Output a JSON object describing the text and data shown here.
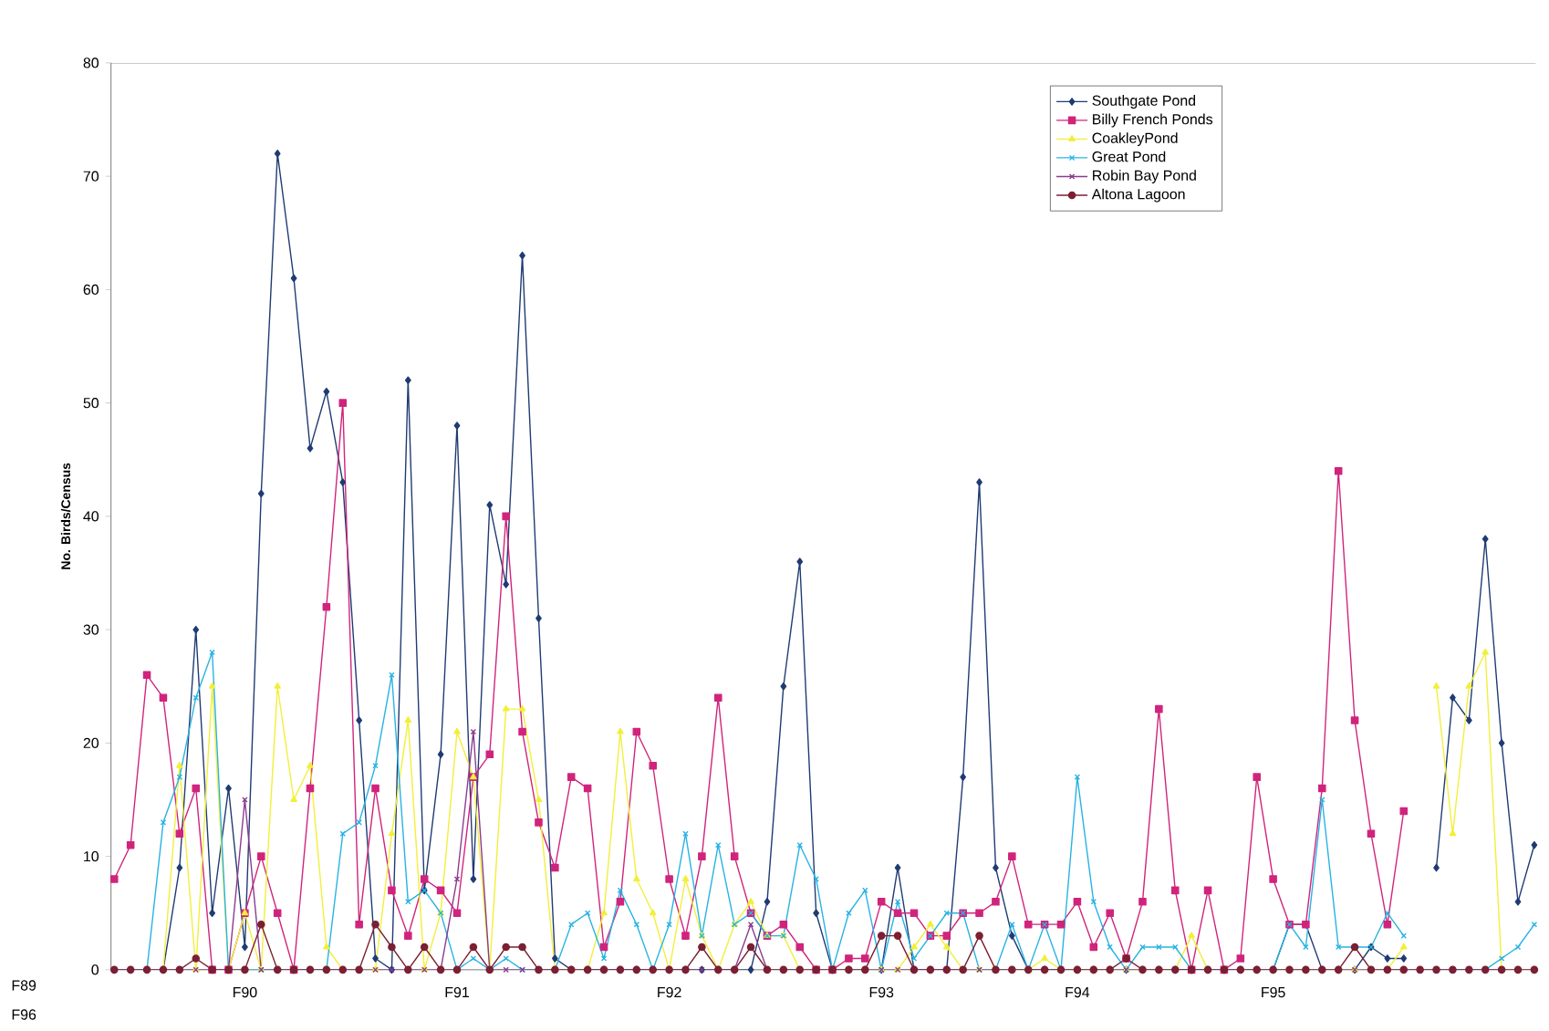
{
  "chart_data": {
    "type": "line",
    "ylabel": "No. Birds/Census",
    "categories": [
      null,
      null,
      null,
      null,
      null,
      null,
      null,
      null,
      "F90",
      null,
      null,
      null,
      null,
      null,
      null,
      null,
      null,
      null,
      null,
      null,
      null,
      "F91",
      null,
      null,
      null,
      null,
      null,
      null,
      null,
      null,
      null,
      null,
      null,
      null,
      "F92",
      null,
      null,
      null,
      null,
      null,
      null,
      null,
      null,
      null,
      null,
      null,
      null,
      "F93",
      null,
      null,
      null,
      null,
      null,
      null,
      null,
      null,
      null,
      null,
      null,
      "F94",
      null,
      null,
      null,
      null,
      null,
      null,
      null,
      null,
      null,
      null,
      null,
      "F95",
      null,
      null,
      null,
      null,
      null,
      null,
      null,
      null,
      null,
      null,
      null,
      null,
      null,
      null,
      null,
      null
    ],
    "ylim": [
      0,
      80
    ],
    "yticks": [
      0,
      10,
      20,
      30,
      40,
      50,
      60,
      70,
      80
    ],
    "legend": "top right",
    "annotations": [
      "F89",
      "F96"
    ],
    "series": [
      {
        "name": "Southgate Pond",
        "color": "#1f3b73",
        "marker": "diamond",
        "values": [
          null,
          null,
          null,
          0,
          9,
          30,
          5,
          16,
          2,
          42,
          72,
          61,
          46,
          51,
          43,
          22,
          1,
          0,
          52,
          7,
          19,
          48,
          8,
          41,
          34,
          63,
          31,
          1,
          0,
          0,
          0,
          0,
          0,
          0,
          0,
          0,
          0,
          0,
          0,
          0,
          6,
          25,
          36,
          5,
          0,
          0,
          0,
          0,
          9,
          0,
          0,
          0,
          17,
          43,
          9,
          3,
          0,
          0,
          0,
          0,
          0,
          0,
          0,
          0,
          0,
          0,
          0,
          0,
          0,
          0,
          0,
          0,
          4,
          4,
          0,
          0,
          0,
          2,
          1,
          1,
          null,
          9,
          24,
          22,
          38,
          20,
          6,
          11
        ]
      },
      {
        "name": "Billy French Ponds",
        "color": "#d0247c",
        "marker": "square",
        "values": [
          8,
          11,
          26,
          24,
          12,
          16,
          0,
          0,
          5,
          10,
          5,
          0,
          16,
          32,
          50,
          4,
          16,
          7,
          3,
          8,
          7,
          5,
          17,
          19,
          40,
          21,
          13,
          9,
          17,
          16,
          2,
          6,
          21,
          18,
          8,
          3,
          10,
          24,
          10,
          5,
          3,
          4,
          2,
          0,
          0,
          1,
          1,
          6,
          5,
          5,
          3,
          3,
          5,
          5,
          6,
          10,
          4,
          4,
          4,
          6,
          2,
          5,
          1,
          6,
          23,
          7,
          0,
          7,
          0,
          1,
          17,
          8,
          4,
          4,
          16,
          44,
          22,
          12,
          4,
          14,
          null,
          null,
          null,
          null,
          null,
          null,
          null,
          null
        ]
      },
      {
        "name": "CoakleyPond",
        "color": "#f2ef3a",
        "marker": "triangle",
        "values": [
          null,
          null,
          null,
          0,
          18,
          0,
          25,
          0,
          5,
          0,
          25,
          15,
          18,
          2,
          0,
          0,
          0,
          12,
          22,
          0,
          5,
          21,
          17,
          0,
          23,
          23,
          15,
          0,
          0,
          0,
          5,
          21,
          8,
          5,
          0,
          8,
          3,
          0,
          4,
          6,
          3,
          3,
          0,
          0,
          0,
          0,
          0,
          0,
          0,
          2,
          4,
          2,
          0,
          0,
          0,
          0,
          0,
          1,
          0,
          0,
          0,
          0,
          0,
          0,
          0,
          0,
          3,
          0,
          0,
          0,
          0,
          0,
          0,
          0,
          0,
          0,
          0,
          0,
          0,
          2,
          null,
          25,
          12,
          25,
          28,
          0,
          0,
          0
        ]
      },
      {
        "name": "Great Pond",
        "color": "#27b3e3",
        "marker": "cross",
        "values": [
          0,
          0,
          0,
          13,
          17,
          24,
          28,
          0,
          0,
          0,
          0,
          0,
          0,
          0,
          12,
          13,
          18,
          26,
          6,
          7,
          5,
          0,
          1,
          0,
          1,
          0,
          0,
          0,
          4,
          5,
          1,
          7,
          4,
          0,
          4,
          12,
          3,
          11,
          4,
          5,
          3,
          3,
          11,
          8,
          0,
          5,
          7,
          0,
          6,
          1,
          3,
          5,
          5,
          0,
          0,
          4,
          0,
          4,
          0,
          17,
          6,
          2,
          0,
          2,
          2,
          2,
          0,
          0,
          0,
          0,
          0,
          0,
          4,
          2,
          15,
          2,
          2,
          2,
          5,
          3,
          null,
          0,
          0,
          0,
          0,
          1,
          2,
          4
        ]
      },
      {
        "name": "Robin Bay Pond",
        "color": "#8b3a8f",
        "marker": "cross",
        "values": [
          0,
          0,
          0,
          0,
          0,
          0,
          0,
          0,
          15,
          0,
          0,
          0,
          0,
          0,
          0,
          0,
          0,
          0,
          0,
          0,
          0,
          8,
          21,
          0,
          0,
          0,
          0,
          0,
          0,
          0,
          0,
          0,
          0,
          0,
          0,
          0,
          0,
          0,
          0,
          4,
          0,
          0,
          0,
          0,
          0,
          0,
          0,
          0,
          0,
          0,
          0,
          0,
          0,
          0,
          0,
          0,
          0,
          0,
          0,
          0,
          0,
          0,
          0,
          0,
          0,
          0,
          0,
          0,
          0,
          0,
          0,
          0,
          0,
          0,
          0,
          0,
          0,
          0,
          0,
          0,
          0,
          0,
          0,
          0,
          0,
          0,
          0,
          0
        ]
      },
      {
        "name": "Altona Lagoon",
        "color": "#7b1f33",
        "marker": "circle",
        "values": [
          0,
          0,
          0,
          0,
          0,
          1,
          0,
          0,
          0,
          4,
          0,
          0,
          0,
          0,
          0,
          0,
          4,
          2,
          0,
          2,
          0,
          0,
          2,
          0,
          2,
          2,
          0,
          0,
          0,
          0,
          0,
          0,
          0,
          0,
          0,
          0,
          2,
          0,
          0,
          2,
          0,
          0,
          0,
          0,
          0,
          0,
          0,
          3,
          3,
          0,
          0,
          0,
          0,
          3,
          0,
          0,
          0,
          0,
          0,
          0,
          0,
          0,
          1,
          0,
          0,
          0,
          0,
          0,
          0,
          0,
          0,
          0,
          0,
          0,
          0,
          0,
          2,
          0,
          0,
          0,
          0,
          0,
          0,
          0,
          0,
          0,
          0,
          0
        ]
      }
    ]
  }
}
